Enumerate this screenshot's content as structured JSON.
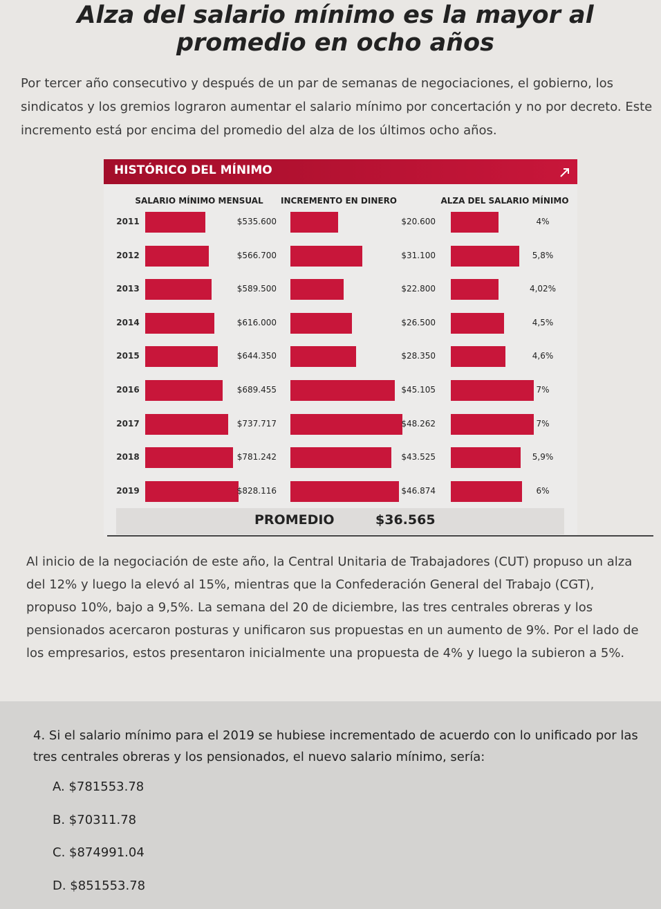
{
  "header": {
    "title": "Alza del salario mínimo es la mayor al promedio en ocho años",
    "intro": "Por tercer año consecutivo y después de un par de semanas de negociaciones, el gobierno, los sindicatos y los gremios lograron aumentar el salario mínimo por concertación y no por decreto. Este incremento está por encima del promedio del alza de los últimos ocho años."
  },
  "chart_data": {
    "type": "bar",
    "title": "HISTÓRICO DEL MÍNIMO",
    "categories": [
      "2011",
      "2012",
      "2013",
      "2014",
      "2015",
      "2016",
      "2017",
      "2018",
      "2019"
    ],
    "series": [
      {
        "name": "SALARIO MÍNIMO MENSUAL",
        "color": "#c8163a",
        "values": [
          535600,
          566700,
          589500,
          616000,
          644350,
          689455,
          737717,
          781242,
          828116
        ],
        "value_labels": [
          "$535.600",
          "$566.700",
          "$589.500",
          "$616.000",
          "$644.350",
          "$689.455",
          "$737.717",
          "$781.242",
          "$828.116"
        ]
      },
      {
        "name": "INCREMENTO EN DINERO",
        "color": "#c8163a",
        "values": [
          20600,
          31100,
          22800,
          26500,
          28350,
          45105,
          48262,
          43525,
          46874
        ],
        "value_labels": [
          "$20.600",
          "$31.100",
          "$22.800",
          "$26.500",
          "$28.350",
          "$45.105",
          "$48.262",
          "$43.525",
          "$46.874"
        ]
      },
      {
        "name": "ALZA DEL SALARIO MÍNIMO",
        "color": "#c8163a",
        "values": [
          4,
          5.8,
          4.02,
          4.5,
          4.6,
          7,
          7,
          5.9,
          6
        ],
        "value_labels": [
          "4%",
          "5,8%",
          "4,02%",
          "4,5%",
          "4,6%",
          "7%",
          "7%",
          "5,9%",
          "6%"
        ]
      }
    ],
    "average_label": "PROMEDIO",
    "average_value": "$36.565"
  },
  "body": {
    "text": "Al inicio de la negociación de este año, la Central Unitaria de Trabajadores (CUT) propuso un alza del 12% y luego la elevó al 15%, mientras que la Confederación General del Trabajo (CGT), propuso 10%, bajo a 9,5%. La semana del 20 de diciembre, las tres centrales obreras y los pensionados acercaron posturas y unificaron sus propuestas en un aumento de 9%. Por el lado de los empresarios, estos presentaron inicialmente una propuesta de 4% y luego la subieron a 5%."
  },
  "question": {
    "text": "4. Si el salario mínimo para el 2019 se hubiese incrementado de acuerdo con lo unificado por las tres centrales obreras y los pensionados, el nuevo salario mínimo, sería:",
    "options": [
      "A. $781553.78",
      "B. $70311.78",
      "C. $874991.04",
      "D. $851553.78"
    ]
  }
}
